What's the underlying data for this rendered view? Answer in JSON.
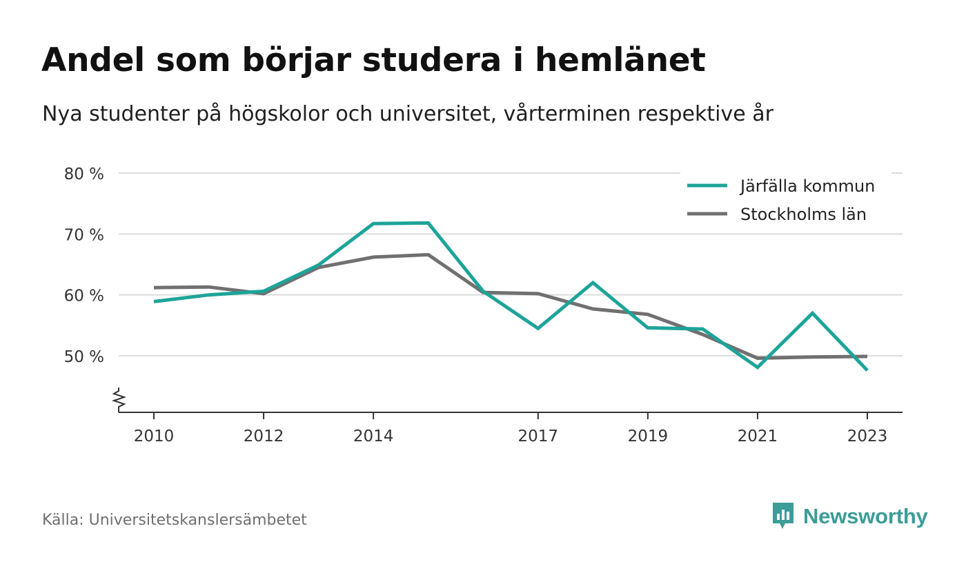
{
  "title": "Andel som börjar studera i hemlänet",
  "subtitle": "Nya studenter på högskolor och universitet, vårterminen respektive år",
  "source": "Källa: Universitetskanslersämbetet",
  "brand": {
    "name": "Newsworthy",
    "icon": "newsworthy-logo-icon",
    "color": "#3c9c98"
  },
  "chart_data": {
    "type": "line",
    "title": "Andel som börjar studera i hemlänet",
    "subtitle": "Nya studenter på högskolor och universitet, vårterminen respektive år",
    "x": [
      2010,
      2011,
      2012,
      2013,
      2014,
      2015,
      2016,
      2017,
      2018,
      2019,
      2020,
      2021,
      2022,
      2023
    ],
    "x_tick_labels": [
      "2010",
      "2012",
      "2014",
      "2017",
      "2019",
      "2021",
      "2023"
    ],
    "x_ticks": [
      2010,
      2012,
      2014,
      2017,
      2019,
      2021,
      2023
    ],
    "y_ticks": [
      50,
      60,
      70,
      80
    ],
    "y_tick_labels": [
      "50 %",
      "60 %",
      "70 %",
      "80 %"
    ],
    "ylim": [
      41,
      80
    ],
    "y_axis_break": true,
    "grid": true,
    "legend_position": "top-right",
    "series": [
      {
        "name": "Järfälla kommun",
        "color": "#1da499",
        "values": [
          58.9,
          60.0,
          60.6,
          64.9,
          71.7,
          71.8,
          60.6,
          54.5,
          62.0,
          54.6,
          54.4,
          48.1,
          57.0,
          47.6
        ]
      },
      {
        "name": "Stockholms län",
        "color": "#707070",
        "values": [
          61.2,
          61.3,
          60.2,
          64.5,
          66.2,
          66.6,
          60.4,
          60.2,
          57.7,
          56.8,
          53.5,
          49.6,
          49.8,
          49.9
        ]
      }
    ]
  }
}
